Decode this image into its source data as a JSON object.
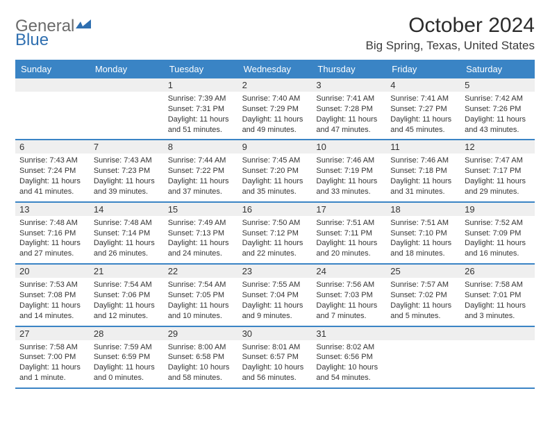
{
  "brand": {
    "word1": "General",
    "word2": "Blue"
  },
  "title": "October 2024",
  "location": "Big Spring, Texas, United States",
  "colors": {
    "header_blue": "#3a84c5",
    "alt_row": "#efefef",
    "brand_gray": "#6a6a6a",
    "brand_blue": "#2f6fb0"
  },
  "dow": [
    "Sunday",
    "Monday",
    "Tuesday",
    "Wednesday",
    "Thursday",
    "Friday",
    "Saturday"
  ],
  "weeks": [
    [
      {
        "n": "",
        "sr": "",
        "ss": "",
        "dl": ""
      },
      {
        "n": "",
        "sr": "",
        "ss": "",
        "dl": ""
      },
      {
        "n": "1",
        "sr": "Sunrise: 7:39 AM",
        "ss": "Sunset: 7:31 PM",
        "dl": "Daylight: 11 hours and 51 minutes."
      },
      {
        "n": "2",
        "sr": "Sunrise: 7:40 AM",
        "ss": "Sunset: 7:29 PM",
        "dl": "Daylight: 11 hours and 49 minutes."
      },
      {
        "n": "3",
        "sr": "Sunrise: 7:41 AM",
        "ss": "Sunset: 7:28 PM",
        "dl": "Daylight: 11 hours and 47 minutes."
      },
      {
        "n": "4",
        "sr": "Sunrise: 7:41 AM",
        "ss": "Sunset: 7:27 PM",
        "dl": "Daylight: 11 hours and 45 minutes."
      },
      {
        "n": "5",
        "sr": "Sunrise: 7:42 AM",
        "ss": "Sunset: 7:26 PM",
        "dl": "Daylight: 11 hours and 43 minutes."
      }
    ],
    [
      {
        "n": "6",
        "sr": "Sunrise: 7:43 AM",
        "ss": "Sunset: 7:24 PM",
        "dl": "Daylight: 11 hours and 41 minutes."
      },
      {
        "n": "7",
        "sr": "Sunrise: 7:43 AM",
        "ss": "Sunset: 7:23 PM",
        "dl": "Daylight: 11 hours and 39 minutes."
      },
      {
        "n": "8",
        "sr": "Sunrise: 7:44 AM",
        "ss": "Sunset: 7:22 PM",
        "dl": "Daylight: 11 hours and 37 minutes."
      },
      {
        "n": "9",
        "sr": "Sunrise: 7:45 AM",
        "ss": "Sunset: 7:20 PM",
        "dl": "Daylight: 11 hours and 35 minutes."
      },
      {
        "n": "10",
        "sr": "Sunrise: 7:46 AM",
        "ss": "Sunset: 7:19 PM",
        "dl": "Daylight: 11 hours and 33 minutes."
      },
      {
        "n": "11",
        "sr": "Sunrise: 7:46 AM",
        "ss": "Sunset: 7:18 PM",
        "dl": "Daylight: 11 hours and 31 minutes."
      },
      {
        "n": "12",
        "sr": "Sunrise: 7:47 AM",
        "ss": "Sunset: 7:17 PM",
        "dl": "Daylight: 11 hours and 29 minutes."
      }
    ],
    [
      {
        "n": "13",
        "sr": "Sunrise: 7:48 AM",
        "ss": "Sunset: 7:16 PM",
        "dl": "Daylight: 11 hours and 27 minutes."
      },
      {
        "n": "14",
        "sr": "Sunrise: 7:48 AM",
        "ss": "Sunset: 7:14 PM",
        "dl": "Daylight: 11 hours and 26 minutes."
      },
      {
        "n": "15",
        "sr": "Sunrise: 7:49 AM",
        "ss": "Sunset: 7:13 PM",
        "dl": "Daylight: 11 hours and 24 minutes."
      },
      {
        "n": "16",
        "sr": "Sunrise: 7:50 AM",
        "ss": "Sunset: 7:12 PM",
        "dl": "Daylight: 11 hours and 22 minutes."
      },
      {
        "n": "17",
        "sr": "Sunrise: 7:51 AM",
        "ss": "Sunset: 7:11 PM",
        "dl": "Daylight: 11 hours and 20 minutes."
      },
      {
        "n": "18",
        "sr": "Sunrise: 7:51 AM",
        "ss": "Sunset: 7:10 PM",
        "dl": "Daylight: 11 hours and 18 minutes."
      },
      {
        "n": "19",
        "sr": "Sunrise: 7:52 AM",
        "ss": "Sunset: 7:09 PM",
        "dl": "Daylight: 11 hours and 16 minutes."
      }
    ],
    [
      {
        "n": "20",
        "sr": "Sunrise: 7:53 AM",
        "ss": "Sunset: 7:08 PM",
        "dl": "Daylight: 11 hours and 14 minutes."
      },
      {
        "n": "21",
        "sr": "Sunrise: 7:54 AM",
        "ss": "Sunset: 7:06 PM",
        "dl": "Daylight: 11 hours and 12 minutes."
      },
      {
        "n": "22",
        "sr": "Sunrise: 7:54 AM",
        "ss": "Sunset: 7:05 PM",
        "dl": "Daylight: 11 hours and 10 minutes."
      },
      {
        "n": "23",
        "sr": "Sunrise: 7:55 AM",
        "ss": "Sunset: 7:04 PM",
        "dl": "Daylight: 11 hours and 9 minutes."
      },
      {
        "n": "24",
        "sr": "Sunrise: 7:56 AM",
        "ss": "Sunset: 7:03 PM",
        "dl": "Daylight: 11 hours and 7 minutes."
      },
      {
        "n": "25",
        "sr": "Sunrise: 7:57 AM",
        "ss": "Sunset: 7:02 PM",
        "dl": "Daylight: 11 hours and 5 minutes."
      },
      {
        "n": "26",
        "sr": "Sunrise: 7:58 AM",
        "ss": "Sunset: 7:01 PM",
        "dl": "Daylight: 11 hours and 3 minutes."
      }
    ],
    [
      {
        "n": "27",
        "sr": "Sunrise: 7:58 AM",
        "ss": "Sunset: 7:00 PM",
        "dl": "Daylight: 11 hours and 1 minute."
      },
      {
        "n": "28",
        "sr": "Sunrise: 7:59 AM",
        "ss": "Sunset: 6:59 PM",
        "dl": "Daylight: 11 hours and 0 minutes."
      },
      {
        "n": "29",
        "sr": "Sunrise: 8:00 AM",
        "ss": "Sunset: 6:58 PM",
        "dl": "Daylight: 10 hours and 58 minutes."
      },
      {
        "n": "30",
        "sr": "Sunrise: 8:01 AM",
        "ss": "Sunset: 6:57 PM",
        "dl": "Daylight: 10 hours and 56 minutes."
      },
      {
        "n": "31",
        "sr": "Sunrise: 8:02 AM",
        "ss": "Sunset: 6:56 PM",
        "dl": "Daylight: 10 hours and 54 minutes."
      },
      {
        "n": "",
        "sr": "",
        "ss": "",
        "dl": ""
      },
      {
        "n": "",
        "sr": "",
        "ss": "",
        "dl": ""
      }
    ]
  ]
}
